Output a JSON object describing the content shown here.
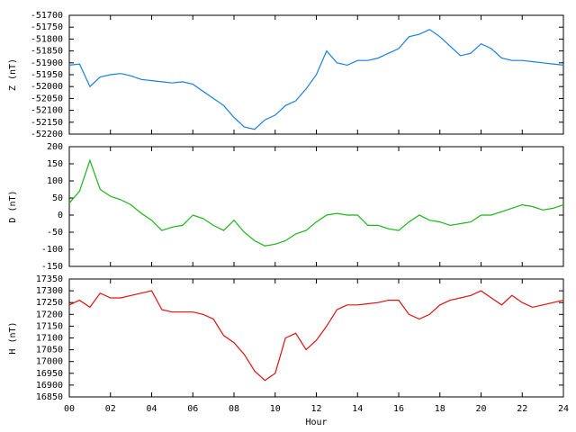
{
  "chart_data": [
    {
      "type": "line",
      "ylabel": "Z (nT)",
      "x": [
        0,
        0.5,
        1,
        1.5,
        2,
        2.5,
        3,
        3.5,
        4,
        4.5,
        5,
        5.5,
        6,
        6.5,
        7,
        7.5,
        8,
        8.5,
        9,
        9.5,
        10,
        10.5,
        11,
        11.5,
        12,
        12.5,
        13,
        13.5,
        14,
        14.5,
        15,
        15.5,
        16,
        16.5,
        17,
        17.5,
        18,
        18.5,
        19,
        19.5,
        20,
        20.5,
        21,
        21.5,
        22,
        22.5,
        23,
        23.5,
        24
      ],
      "series": [
        {
          "name": "Z",
          "color": "#1a7ee0",
          "values": [
            -51910,
            -51905,
            -52000,
            -51960,
            -51950,
            -51945,
            -51955,
            -51970,
            -51975,
            -51980,
            -51985,
            -51980,
            -51990,
            -52020,
            -52050,
            -52080,
            -52130,
            -52170,
            -52180,
            -52140,
            -52120,
            -52080,
            -52060,
            -52010,
            -51950,
            -51850,
            -51900,
            -51910,
            -51890,
            -51890,
            -51880,
            -51860,
            -51840,
            -51790,
            -51780,
            -51760,
            -51790,
            -51830,
            -51870,
            -51860,
            -51820,
            -51840,
            -51880,
            -51890,
            -51890,
            -51895,
            -51900,
            -51905,
            -51910
          ]
        }
      ],
      "xlim": [
        0,
        24
      ],
      "xticks": [
        0,
        2,
        4,
        6,
        8,
        10,
        12,
        14,
        16,
        18,
        20,
        22,
        24
      ],
      "ylim": [
        -52200,
        -51700
      ],
      "yticks": [
        -52200,
        -52150,
        -52100,
        -52050,
        -52000,
        -51950,
        -51900,
        -51850,
        -51800,
        -51750,
        -51700
      ]
    },
    {
      "type": "line",
      "ylabel": "D (nT)",
      "x": [
        0,
        0.5,
        1,
        1.5,
        2,
        2.5,
        3,
        3.5,
        4,
        4.5,
        5,
        5.5,
        6,
        6.5,
        7,
        7.5,
        8,
        8.5,
        9,
        9.5,
        10,
        10.5,
        11,
        11.5,
        12,
        12.5,
        13,
        13.5,
        14,
        14.5,
        15,
        15.5,
        16,
        16.5,
        17,
        17.5,
        18,
        18.5,
        19,
        19.5,
        20,
        20.5,
        21,
        21.5,
        22,
        22.5,
        23,
        23.5,
        24
      ],
      "series": [
        {
          "name": "D",
          "color": "#1ab51a",
          "values": [
            35,
            70,
            160,
            75,
            55,
            45,
            30,
            5,
            -15,
            -45,
            -35,
            -30,
            0,
            -10,
            -30,
            -45,
            -15,
            -50,
            -75,
            -90,
            -85,
            -75,
            -55,
            -45,
            -20,
            0,
            5,
            0,
            0,
            -30,
            -30,
            -40,
            -45,
            -20,
            0,
            -15,
            -20,
            -30,
            -25,
            -20,
            0,
            0,
            10,
            20,
            30,
            25,
            15,
            20,
            30
          ]
        }
      ],
      "xlim": [
        0,
        24
      ],
      "xticks": [
        0,
        2,
        4,
        6,
        8,
        10,
        12,
        14,
        16,
        18,
        20,
        22,
        24
      ],
      "ylim": [
        -150,
        200
      ],
      "yticks": [
        -150,
        -100,
        -50,
        0,
        50,
        100,
        150,
        200
      ]
    },
    {
      "type": "line",
      "ylabel": "H (nT)",
      "xlabel": "Hour",
      "x": [
        0,
        0.5,
        1,
        1.5,
        2,
        2.5,
        3,
        3.5,
        4,
        4.5,
        5,
        5.5,
        6,
        6.5,
        7,
        7.5,
        8,
        8.5,
        9,
        9.5,
        10,
        10.5,
        11,
        11.5,
        12,
        12.5,
        13,
        13.5,
        14,
        14.5,
        15,
        15.5,
        16,
        16.5,
        17,
        17.5,
        18,
        18.5,
        19,
        19.5,
        20,
        20.5,
        21,
        21.5,
        22,
        22.5,
        23,
        23.5,
        24
      ],
      "series": [
        {
          "name": "H",
          "color": "#e01010",
          "values": [
            17240,
            17260,
            17230,
            17290,
            17270,
            17270,
            17280,
            17290,
            17300,
            17220,
            17210,
            17210,
            17210,
            17200,
            17180,
            17110,
            17080,
            17030,
            16960,
            16920,
            16950,
            17100,
            17120,
            17050,
            17090,
            17150,
            17220,
            17240,
            17240,
            17245,
            17250,
            17260,
            17260,
            17200,
            17180,
            17200,
            17240,
            17260,
            17270,
            17280,
            17300,
            17270,
            17240,
            17280,
            17250,
            17230,
            17240,
            17250,
            17260
          ]
        }
      ],
      "xlim": [
        0,
        24
      ],
      "xticks": [
        {
          "value": 0,
          "label": "00"
        },
        {
          "value": 2,
          "label": "02"
        },
        {
          "value": 4,
          "label": "04"
        },
        {
          "value": 6,
          "label": "06"
        },
        {
          "value": 8,
          "label": "08"
        },
        {
          "value": 10,
          "label": "10"
        },
        {
          "value": 12,
          "label": "12"
        },
        {
          "value": 14,
          "label": "14"
        },
        {
          "value": 16,
          "label": "16"
        },
        {
          "value": 18,
          "label": "18"
        },
        {
          "value": 20,
          "label": "20"
        },
        {
          "value": 22,
          "label": "22"
        },
        {
          "value": 24,
          "label": "24"
        }
      ],
      "ylim": [
        16850,
        17350
      ],
      "yticks": [
        16850,
        16900,
        16950,
        17000,
        17050,
        17100,
        17150,
        17200,
        17250,
        17300,
        17350
      ]
    }
  ]
}
